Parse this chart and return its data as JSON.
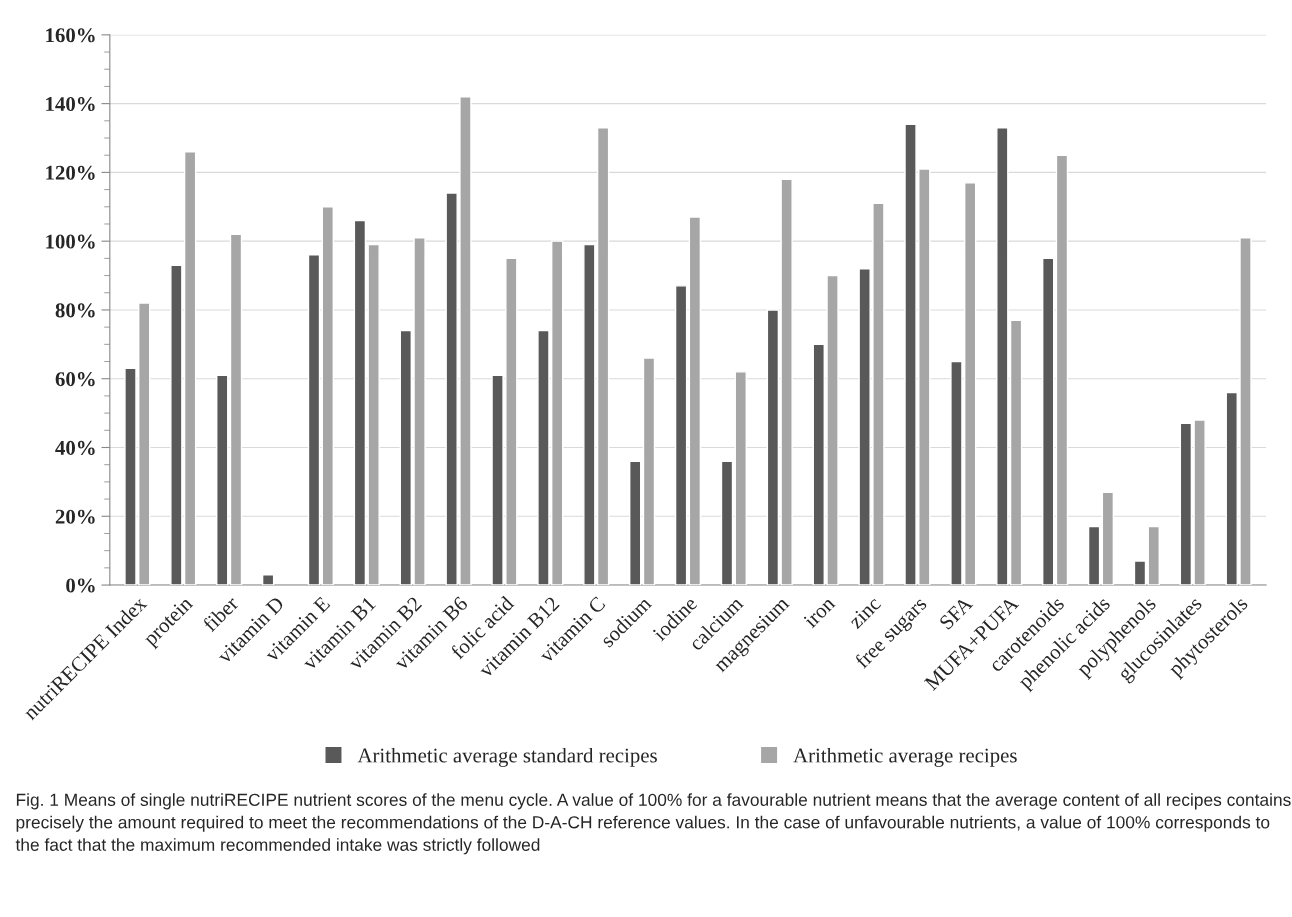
{
  "chart_data": {
    "type": "bar",
    "categories": [
      "nutriRECIPE Index",
      "protein",
      "fiber",
      "vitamin D",
      "vitamin E",
      "vitamin B1",
      "vitamin B2",
      "vitamin B6",
      "folic acid",
      "vitamin B12",
      "vitamin C",
      "sodium",
      "iodine",
      "calcium",
      "magnesium",
      "iron",
      "zinc",
      "free sugars",
      "SFA",
      "MUFA+PUFA",
      "carotenoids",
      "phenolic acids",
      "polyphenols",
      "glucosinlates",
      "phytosterols"
    ],
    "series": [
      {
        "name": "Arithmetic average standard recipes",
        "color": "#595959",
        "values": [
          63,
          93,
          61,
          3,
          96,
          106,
          74,
          114,
          61,
          74,
          99,
          36,
          87,
          36,
          80,
          70,
          92,
          134,
          65,
          133,
          95,
          17,
          7,
          47,
          56
        ]
      },
      {
        "name": "Arithmetic average recipes",
        "color": "#a6a6a6",
        "values": [
          82,
          126,
          102,
          null,
          110,
          99,
          101,
          142,
          95,
          100,
          133,
          66,
          107,
          62,
          118,
          90,
          111,
          121,
          117,
          77,
          125,
          27,
          17,
          48,
          101
        ]
      }
    ],
    "ylim": [
      0,
      160
    ],
    "yticks": [
      {
        "value": 0,
        "label": "0%"
      },
      {
        "value": 20,
        "label": "20%"
      },
      {
        "value": 40,
        "label": "40%"
      },
      {
        "value": 60,
        "label": "60%"
      },
      {
        "value": 80,
        "label": "80%"
      },
      {
        "value": 100,
        "label": "100%"
      },
      {
        "value": 120,
        "label": "120%"
      },
      {
        "value": 140,
        "label": "140%"
      },
      {
        "value": 160,
        "label": "160%"
      }
    ],
    "grid": "y",
    "legend": "bottom",
    "annotations": [
      "Fig. 1 Means of single nutriRECIPE nutrient scores of the menu cycle. A value of 100% for a favourable nutrient means that the average content of all recipes contains precisely the amount required to meet the recommendations of the D-A-CH reference values. In the case of unfavourable nutrients, a value of 100% corresponds to the fact that the maximum recommended intake was strictly followed"
    ]
  }
}
